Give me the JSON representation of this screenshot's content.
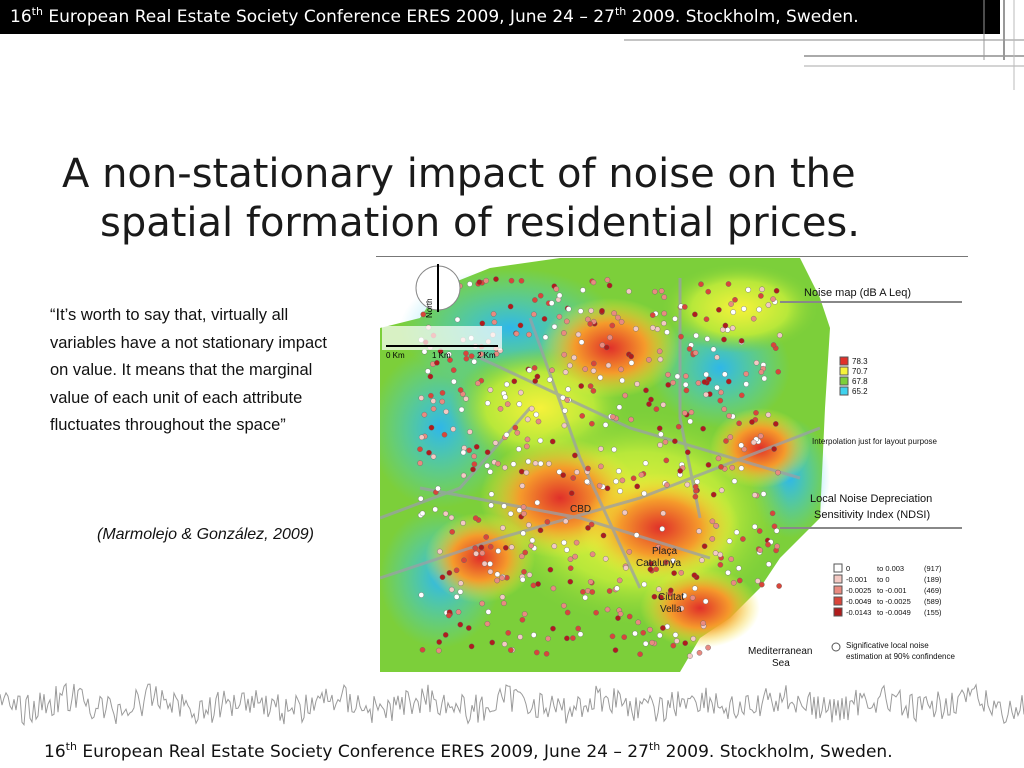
{
  "header": {
    "num": "16",
    "sup": "th",
    "text_a": " European Real Estate Society Conference ERES 2009, June 24 – 27",
    "sup2": "th",
    "text_b": " 2009. Stockholm, Sweden."
  },
  "slide": {
    "title_line1": "A non-stationary impact of noise on the",
    "title_line2": "spatial formation of residential prices.",
    "quote": "“It’s worth to say that, virtually all variables have a not stationary impact on value. It means that the marginal value of each unit of each attribute fluctuates throughout the space”",
    "citation": "(Marmolejo & González, 2009)"
  },
  "map": {
    "north_label": "North",
    "scale_labels": [
      "0 Km",
      "1 Km",
      "2 Km"
    ],
    "noise_map_title": "Noise map (dB A Leq)",
    "noise_legend": [
      {
        "value": "78.3",
        "color": "#e0302a"
      },
      {
        "value": "70.7",
        "color": "#f6f23a"
      },
      {
        "value": "67.8",
        "color": "#7ccf3a"
      },
      {
        "value": "65.2",
        "color": "#3fd2ee"
      }
    ],
    "interpolation_note": "Interpolation just for layout purpose",
    "ndsi_title_1": "Local Noise Depreciation",
    "ndsi_title_2": "Sensitivity Index (NDSI)",
    "ndsi_legend": [
      {
        "from": "0",
        "to": "to  0.003",
        "count": "(917)",
        "color": "#ffffff"
      },
      {
        "from": "-0.001",
        "to": "to  0",
        "count": "(189)",
        "color": "#f3c9c3"
      },
      {
        "from": "-0.0025",
        "to": "to -0.001",
        "count": "(469)",
        "color": "#e98a80"
      },
      {
        "from": "-0.0049",
        "to": "to -0.0025",
        "count": "(589)",
        "color": "#d9453a"
      },
      {
        "from": "-0.0143",
        "to": "to -0.0049",
        "count": "(155)",
        "color": "#b01c1c"
      }
    ],
    "significance_1": "Significative local noise",
    "significance_2": "estimation at 90% confindence",
    "place_labels": {
      "cbd": "CBD",
      "placa_1": "Plaça",
      "placa_2": "Catalunya",
      "ciutat_1": "Ciutat",
      "ciutat_2": "Vella",
      "sea_1": "Mediterranean",
      "sea_2": "Sea"
    }
  },
  "footer": {
    "num": "16",
    "sup": "th",
    "text_a": " European Real Estate Society Conference ERES 2009, June 24 – 27",
    "sup2": "th",
    "text_b": " 2009. Stockholm, Sweden."
  }
}
